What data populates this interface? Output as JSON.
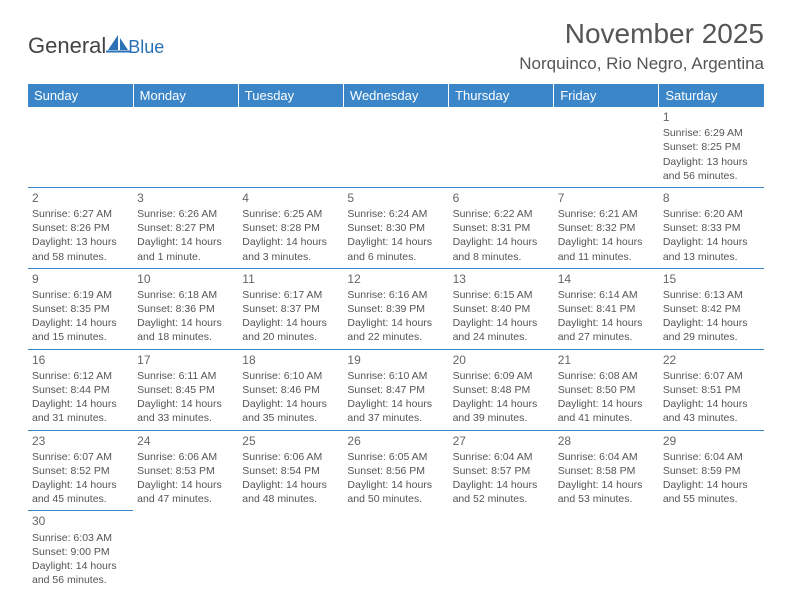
{
  "logo": {
    "text1": "General",
    "text2": "Blue",
    "sail_color": "#2a72b5"
  },
  "title": "November 2025",
  "location": "Norquinco, Rio Negro, Argentina",
  "colors": {
    "header_bg": "#3a86c8",
    "header_fg": "#ffffff",
    "cell_border": "#3a86c8",
    "text": "#555555"
  },
  "day_names": [
    "Sunday",
    "Monday",
    "Tuesday",
    "Wednesday",
    "Thursday",
    "Friday",
    "Saturday"
  ],
  "weeks": [
    [
      null,
      null,
      null,
      null,
      null,
      null,
      {
        "n": "1",
        "sr": "Sunrise: 6:29 AM",
        "ss": "Sunset: 8:25 PM",
        "dl": "Daylight: 13 hours and 56 minutes."
      }
    ],
    [
      {
        "n": "2",
        "sr": "Sunrise: 6:27 AM",
        "ss": "Sunset: 8:26 PM",
        "dl": "Daylight: 13 hours and 58 minutes."
      },
      {
        "n": "3",
        "sr": "Sunrise: 6:26 AM",
        "ss": "Sunset: 8:27 PM",
        "dl": "Daylight: 14 hours and 1 minute."
      },
      {
        "n": "4",
        "sr": "Sunrise: 6:25 AM",
        "ss": "Sunset: 8:28 PM",
        "dl": "Daylight: 14 hours and 3 minutes."
      },
      {
        "n": "5",
        "sr": "Sunrise: 6:24 AM",
        "ss": "Sunset: 8:30 PM",
        "dl": "Daylight: 14 hours and 6 minutes."
      },
      {
        "n": "6",
        "sr": "Sunrise: 6:22 AM",
        "ss": "Sunset: 8:31 PM",
        "dl": "Daylight: 14 hours and 8 minutes."
      },
      {
        "n": "7",
        "sr": "Sunrise: 6:21 AM",
        "ss": "Sunset: 8:32 PM",
        "dl": "Daylight: 14 hours and 11 minutes."
      },
      {
        "n": "8",
        "sr": "Sunrise: 6:20 AM",
        "ss": "Sunset: 8:33 PM",
        "dl": "Daylight: 14 hours and 13 minutes."
      }
    ],
    [
      {
        "n": "9",
        "sr": "Sunrise: 6:19 AM",
        "ss": "Sunset: 8:35 PM",
        "dl": "Daylight: 14 hours and 15 minutes."
      },
      {
        "n": "10",
        "sr": "Sunrise: 6:18 AM",
        "ss": "Sunset: 8:36 PM",
        "dl": "Daylight: 14 hours and 18 minutes."
      },
      {
        "n": "11",
        "sr": "Sunrise: 6:17 AM",
        "ss": "Sunset: 8:37 PM",
        "dl": "Daylight: 14 hours and 20 minutes."
      },
      {
        "n": "12",
        "sr": "Sunrise: 6:16 AM",
        "ss": "Sunset: 8:39 PM",
        "dl": "Daylight: 14 hours and 22 minutes."
      },
      {
        "n": "13",
        "sr": "Sunrise: 6:15 AM",
        "ss": "Sunset: 8:40 PM",
        "dl": "Daylight: 14 hours and 24 minutes."
      },
      {
        "n": "14",
        "sr": "Sunrise: 6:14 AM",
        "ss": "Sunset: 8:41 PM",
        "dl": "Daylight: 14 hours and 27 minutes."
      },
      {
        "n": "15",
        "sr": "Sunrise: 6:13 AM",
        "ss": "Sunset: 8:42 PM",
        "dl": "Daylight: 14 hours and 29 minutes."
      }
    ],
    [
      {
        "n": "16",
        "sr": "Sunrise: 6:12 AM",
        "ss": "Sunset: 8:44 PM",
        "dl": "Daylight: 14 hours and 31 minutes."
      },
      {
        "n": "17",
        "sr": "Sunrise: 6:11 AM",
        "ss": "Sunset: 8:45 PM",
        "dl": "Daylight: 14 hours and 33 minutes."
      },
      {
        "n": "18",
        "sr": "Sunrise: 6:10 AM",
        "ss": "Sunset: 8:46 PM",
        "dl": "Daylight: 14 hours and 35 minutes."
      },
      {
        "n": "19",
        "sr": "Sunrise: 6:10 AM",
        "ss": "Sunset: 8:47 PM",
        "dl": "Daylight: 14 hours and 37 minutes."
      },
      {
        "n": "20",
        "sr": "Sunrise: 6:09 AM",
        "ss": "Sunset: 8:48 PM",
        "dl": "Daylight: 14 hours and 39 minutes."
      },
      {
        "n": "21",
        "sr": "Sunrise: 6:08 AM",
        "ss": "Sunset: 8:50 PM",
        "dl": "Daylight: 14 hours and 41 minutes."
      },
      {
        "n": "22",
        "sr": "Sunrise: 6:07 AM",
        "ss": "Sunset: 8:51 PM",
        "dl": "Daylight: 14 hours and 43 minutes."
      }
    ],
    [
      {
        "n": "23",
        "sr": "Sunrise: 6:07 AM",
        "ss": "Sunset: 8:52 PM",
        "dl": "Daylight: 14 hours and 45 minutes."
      },
      {
        "n": "24",
        "sr": "Sunrise: 6:06 AM",
        "ss": "Sunset: 8:53 PM",
        "dl": "Daylight: 14 hours and 47 minutes."
      },
      {
        "n": "25",
        "sr": "Sunrise: 6:06 AM",
        "ss": "Sunset: 8:54 PM",
        "dl": "Daylight: 14 hours and 48 minutes."
      },
      {
        "n": "26",
        "sr": "Sunrise: 6:05 AM",
        "ss": "Sunset: 8:56 PM",
        "dl": "Daylight: 14 hours and 50 minutes."
      },
      {
        "n": "27",
        "sr": "Sunrise: 6:04 AM",
        "ss": "Sunset: 8:57 PM",
        "dl": "Daylight: 14 hours and 52 minutes."
      },
      {
        "n": "28",
        "sr": "Sunrise: 6:04 AM",
        "ss": "Sunset: 8:58 PM",
        "dl": "Daylight: 14 hours and 53 minutes."
      },
      {
        "n": "29",
        "sr": "Sunrise: 6:04 AM",
        "ss": "Sunset: 8:59 PM",
        "dl": "Daylight: 14 hours and 55 minutes."
      }
    ],
    [
      {
        "n": "30",
        "sr": "Sunrise: 6:03 AM",
        "ss": "Sunset: 9:00 PM",
        "dl": "Daylight: 14 hours and 56 minutes."
      },
      null,
      null,
      null,
      null,
      null,
      null
    ]
  ]
}
